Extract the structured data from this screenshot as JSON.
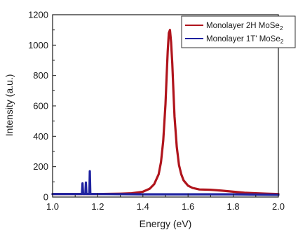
{
  "chart_data": {
    "type": "line",
    "xlabel": "Energy (eV)",
    "ylabel": "Intensity (a.u.)",
    "xlim": [
      1.0,
      2.0
    ],
    "ylim": [
      0,
      1200
    ],
    "x_ticks": [
      1.0,
      1.2,
      1.4,
      1.6,
      1.8,
      2.0
    ],
    "x_tick_labels": [
      "1.0",
      "1.2",
      "1.4",
      "1.6",
      "1.8",
      "2.0"
    ],
    "y_ticks": [
      0,
      200,
      400,
      600,
      800,
      1000,
      1200
    ],
    "y_tick_labels": [
      "0",
      "200",
      "400",
      "600",
      "800",
      "1000",
      "1200"
    ],
    "grid": false,
    "legend_position": "top-right",
    "legend_title_prefix_1": "Monolayer 2H MoSe",
    "legend_title_prefix_2": "Monolayer 1T' MoSe",
    "legend_subscript": "2",
    "series": [
      {
        "name": "Monolayer 2H MoSe2",
        "color": "#b0141c",
        "x": [
          1.0,
          1.1,
          1.2,
          1.3,
          1.35,
          1.4,
          1.43,
          1.45,
          1.47,
          1.48,
          1.49,
          1.5,
          1.505,
          1.51,
          1.515,
          1.52,
          1.525,
          1.53,
          1.535,
          1.54,
          1.55,
          1.56,
          1.57,
          1.58,
          1.6,
          1.62,
          1.65,
          1.7,
          1.75,
          1.8,
          1.85,
          1.9,
          1.95,
          2.0
        ],
        "y": [
          20,
          20,
          20,
          22,
          25,
          35,
          55,
          85,
          150,
          230,
          370,
          610,
          790,
          960,
          1080,
          1100,
          1020,
          880,
          700,
          530,
          330,
          210,
          150,
          110,
          75,
          60,
          50,
          48,
          42,
          35,
          28,
          25,
          22,
          20
        ]
      },
      {
        "name": "Monolayer 1T' MoSe2",
        "color": "#1e22a0",
        "x": [
          1.0,
          1.13,
          1.1325,
          1.135,
          1.145,
          1.1475,
          1.15,
          1.163,
          1.165,
          1.167,
          1.2,
          1.4,
          1.6,
          1.8,
          2.0
        ],
        "y": [
          20,
          20,
          90,
          20,
          20,
          95,
          20,
          20,
          170,
          20,
          20,
          18,
          18,
          18,
          15
        ]
      }
    ]
  }
}
